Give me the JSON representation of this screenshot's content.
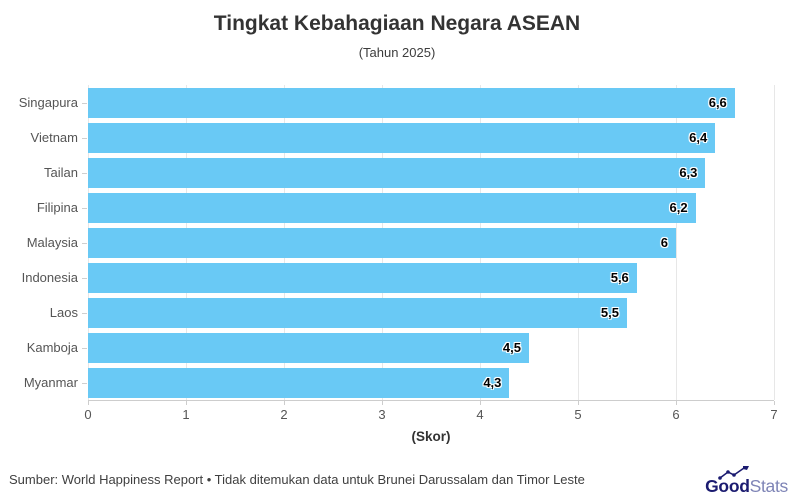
{
  "header": {
    "title": "Tingkat Kebahagiaan Negara ASEAN",
    "subtitle": "(Tahun 2025)"
  },
  "chart_data": {
    "type": "bar",
    "orientation": "horizontal",
    "title": "Tingkat Kebahagiaan Negara ASEAN",
    "subtitle": "(Tahun 2025)",
    "categories": [
      "Singapura",
      "Vietnam",
      "Tailan",
      "Filipina",
      "Malaysia",
      "Indonesia",
      "Laos",
      "Kamboja",
      "Myanmar"
    ],
    "values": [
      6.6,
      6.4,
      6.3,
      6.2,
      6.0,
      5.6,
      5.5,
      4.5,
      4.3
    ],
    "value_labels": [
      "6,6",
      "6,4",
      "6,3",
      "6,2",
      "6",
      "5,6",
      "5,5",
      "4,5",
      "4,3"
    ],
    "xlabel": "(Skor)",
    "ylabel": "",
    "xlim": [
      0,
      7
    ],
    "xticks": [
      0,
      1,
      2,
      3,
      4,
      5,
      6,
      7
    ],
    "xtick_labels": [
      "0",
      "1",
      "2",
      "3",
      "4",
      "5",
      "6",
      "7"
    ],
    "grid": "vertical",
    "legend": "none",
    "bar_color": "#69C9F5"
  },
  "footer": {
    "source": "Sumber: World Happiness Report • Tidak ditemukan data untuk Brunei Darussalam dan Timor Leste",
    "logo": {
      "good": "Good",
      "stats": "Stats",
      "icon": "trend-up-icon",
      "good_color": "#1b1b70",
      "stats_color": "#7e84b6"
    }
  },
  "colors": {
    "background": "#ffffff",
    "bar": "#69C9F5",
    "title_text": "#333333",
    "axis_text": "#555555",
    "gridline": "#e7e7e7",
    "value_label": "#000000"
  }
}
